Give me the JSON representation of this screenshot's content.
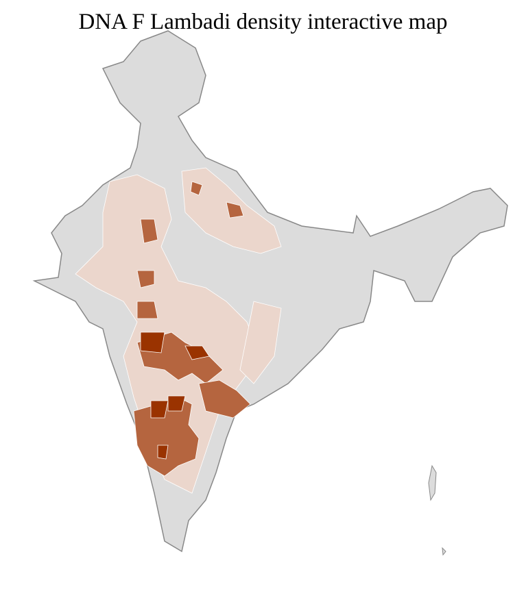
{
  "title": "DNA F Lambadi density interactive map",
  "colors": {
    "no_data": "#dcdcdc",
    "low": "#ebd6cc",
    "medium": "#b5653f",
    "high": "#9a3300",
    "state_border": "#888888",
    "district_border": "#ffffff"
  },
  "density_levels": [
    "no_data",
    "low",
    "medium",
    "high"
  ]
}
